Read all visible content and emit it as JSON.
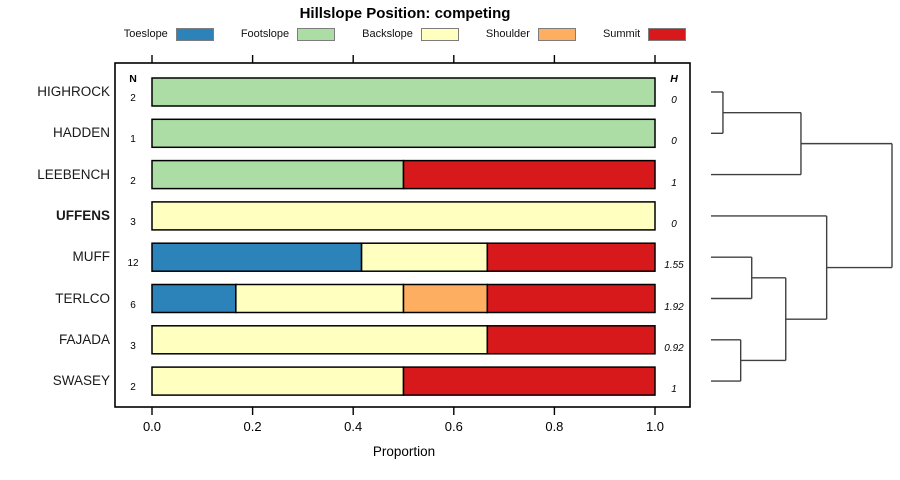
{
  "chart_data": {
    "type": "stacked_bar_horizontal_with_dendrogram",
    "title": "Hillslope Position: competing",
    "xlabel": "Proportion",
    "xlim": [
      0,
      1
    ],
    "xticks": [
      {
        "value": 0.0,
        "label": "0.0"
      },
      {
        "value": 0.2,
        "label": "0.2"
      },
      {
        "value": 0.4,
        "label": "0.4"
      },
      {
        "value": 0.6,
        "label": "0.6"
      },
      {
        "value": 0.8,
        "label": "0.8"
      },
      {
        "value": 1.0,
        "label": "1.0"
      }
    ],
    "legend": [
      {
        "label": "Toeslope",
        "color": "#2B83BA"
      },
      {
        "label": "Footslope",
        "color": "#ABDDA4"
      },
      {
        "label": "Backslope",
        "color": "#FFFFBF"
      },
      {
        "label": "Shoulder",
        "color": "#FDAE61"
      },
      {
        "label": "Summit",
        "color": "#D7191C"
      }
    ],
    "columns": {
      "n_header": "N",
      "h_header": "H"
    },
    "rows": [
      {
        "label": "HIGHROCK",
        "bold": false,
        "n": "2",
        "h": "0",
        "segments": [
          {
            "category": "Footslope",
            "value": 1.0
          }
        ]
      },
      {
        "label": "HADDEN",
        "bold": false,
        "n": "1",
        "h": "0",
        "segments": [
          {
            "category": "Footslope",
            "value": 1.0
          }
        ]
      },
      {
        "label": "LEEBENCH",
        "bold": false,
        "n": "2",
        "h": "1",
        "segments": [
          {
            "category": "Footslope",
            "value": 0.5
          },
          {
            "category": "Summit",
            "value": 0.5
          }
        ]
      },
      {
        "label": "UFFENS",
        "bold": true,
        "n": "3",
        "h": "0",
        "segments": [
          {
            "category": "Backslope",
            "value": 1.0
          }
        ]
      },
      {
        "label": "MUFF",
        "bold": false,
        "n": "12",
        "h": "1.55",
        "segments": [
          {
            "category": "Toeslope",
            "value": 0.41667
          },
          {
            "category": "Backslope",
            "value": 0.25
          },
          {
            "category": "Summit",
            "value": 0.33333
          }
        ]
      },
      {
        "label": "TERLCO",
        "bold": false,
        "n": "6",
        "h": "1.92",
        "segments": [
          {
            "category": "Toeslope",
            "value": 0.16667
          },
          {
            "category": "Backslope",
            "value": 0.33333
          },
          {
            "category": "Shoulder",
            "value": 0.16667
          },
          {
            "category": "Summit",
            "value": 0.33333
          }
        ]
      },
      {
        "label": "FAJADA",
        "bold": false,
        "n": "3",
        "h": "0.92",
        "segments": [
          {
            "category": "Backslope",
            "value": 0.66667
          },
          {
            "category": "Summit",
            "value": 0.33333
          }
        ]
      },
      {
        "label": "SWASEY",
        "bold": false,
        "n": "2",
        "h": "1",
        "segments": [
          {
            "category": "Backslope",
            "value": 0.5
          },
          {
            "category": "Summit",
            "value": 0.5
          }
        ]
      }
    ],
    "dendrogram": {
      "note": "heights normalized 0-1 from leaves to root",
      "tree": {
        "height": 1.0,
        "children": [
          {
            "height": 0.497,
            "children": [
              {
                "height": 0.066,
                "children": [
                  {
                    "leaf": "HIGHROCK"
                  },
                  {
                    "leaf": "HADDEN"
                  }
                ]
              },
              {
                "leaf": "LEEBENCH"
              }
            ]
          },
          {
            "height": 0.639,
            "children": [
              {
                "leaf": "UFFENS"
              },
              {
                "height": 0.413,
                "children": [
                  {
                    "height": 0.225,
                    "children": [
                      {
                        "leaf": "MUFF"
                      },
                      {
                        "leaf": "TERLCO"
                      }
                    ]
                  },
                  {
                    "height": 0.164,
                    "children": [
                      {
                        "leaf": "FAJADA"
                      },
                      {
                        "leaf": "SWASEY"
                      }
                    ]
                  }
                ]
              }
            ]
          }
        ]
      }
    },
    "style_colors": {
      "bar_border": "#000000",
      "axis": "#000000",
      "dendrogram_line": "#404040",
      "legend_swatch_border": "#7d7d7d"
    }
  }
}
